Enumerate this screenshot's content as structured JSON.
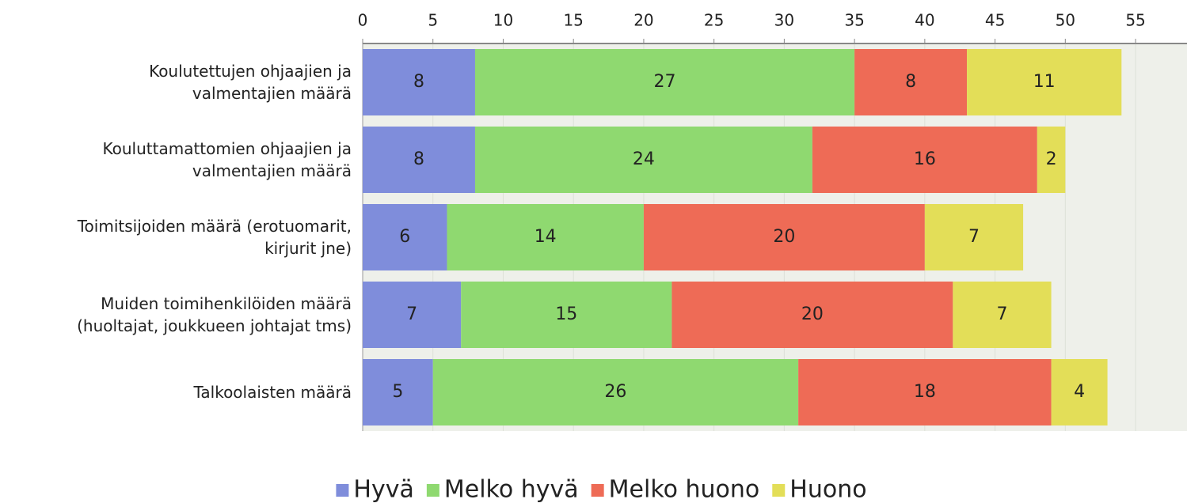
{
  "chart_data": {
    "type": "stacked_bar_horizontal",
    "categories": [
      "Koulutettujen ohjaajien ja\nvalmentajien määrä",
      "Kouluttamattomien ohjaajien ja\nvalmentajien määrä",
      "Toimitsijoiden määrä (erotuomarit,\nkirjurit jne)",
      "Muiden toimihenkilöiden määrä\n(huoltajat, joukkueen johtajat tms)",
      "Talkoolaisten määrä"
    ],
    "series": [
      {
        "name": "Hyvä",
        "color": "#7f8ddb",
        "values": [
          8,
          8,
          6,
          7,
          5
        ]
      },
      {
        "name": "Melko hyvä",
        "color": "#8fd970",
        "values": [
          27,
          24,
          14,
          15,
          26
        ]
      },
      {
        "name": "Melko huono",
        "color": "#ee6b56",
        "values": [
          8,
          16,
          20,
          20,
          18
        ]
      },
      {
        "name": "Huono",
        "color": "#e3de58",
        "values": [
          11,
          2,
          7,
          7,
          4
        ]
      }
    ],
    "xlim": [
      0,
      58.66
    ],
    "xticks": [
      0,
      5,
      10,
      15,
      20,
      25,
      30,
      35,
      40,
      45,
      50,
      55
    ],
    "grid": true,
    "legend": "bottom"
  }
}
